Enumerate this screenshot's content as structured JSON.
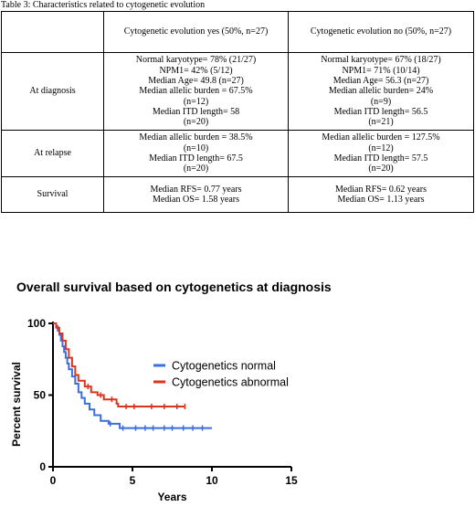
{
  "table": {
    "caption": "Table 3: Characteristics related to cytogenetic evolution",
    "header": [
      "",
      "Cytogenetic evolution yes (50%, n=27)",
      "Cytogenetic evolution no (50%, n=27)"
    ],
    "rows": [
      {
        "label": "At diagnosis",
        "yes": [
          "Normal karyotype= 78% (21/27)",
          "NPM1= 42% (5/12)",
          "Median Age= 49.8 (n=27)",
          "Median allelic burden = 67.5%",
          "(n=12)",
          "Median ITD length= 58",
          "(n=20)"
        ],
        "no": [
          "Normal karyotype= 67% (18/27)",
          "NPM1= 71% (10/14)",
          "Median Age= 56.3 (n=27)",
          "Median allelic burden= 24%",
          "(n=9)",
          "Median ITD length= 56.5",
          "(n=21)"
        ]
      },
      {
        "label": "At relapse",
        "yes": [
          "Median allelic burden = 38.5%",
          "(n=10)",
          "Median ITD length= 67.5",
          "(n=20)"
        ],
        "no": [
          "Median allelic burden = 127.5%",
          "(n=12)",
          "Median ITD length= 57.5",
          "(n=20)"
        ]
      },
      {
        "label": "Survival",
        "yes": [
          "Median RFS= 0.77 years",
          "Median OS= 1.58 years"
        ],
        "no": [
          "Median RFS= 0.62 years",
          "Median OS= 1.13 years"
        ]
      }
    ]
  },
  "chart_data": {
    "type": "line",
    "title": "Overall survival based on cytogenetics at diagnosis",
    "xlabel": "Years",
    "ylabel": "Percent survival",
    "xlim": [
      0,
      15
    ],
    "ylim": [
      0,
      100
    ],
    "xticks": [
      0,
      5,
      10,
      15
    ],
    "yticks": [
      0,
      50,
      100
    ],
    "legend_position": "right",
    "series": [
      {
        "name": "Cytogenetics normal",
        "color": "#3b6fe0",
        "points": [
          [
            0,
            100
          ],
          [
            0.1,
            100
          ],
          [
            0.2,
            98
          ],
          [
            0.3,
            95
          ],
          [
            0.4,
            92
          ],
          [
            0.5,
            88
          ],
          [
            0.6,
            84
          ],
          [
            0.7,
            80
          ],
          [
            0.8,
            76
          ],
          [
            0.9,
            72
          ],
          [
            1.0,
            68
          ],
          [
            1.2,
            63
          ],
          [
            1.4,
            58
          ],
          [
            1.6,
            52
          ],
          [
            1.8,
            48
          ],
          [
            2.0,
            44
          ],
          [
            2.3,
            40
          ],
          [
            2.6,
            36
          ],
          [
            3.0,
            32
          ],
          [
            3.5,
            30
          ],
          [
            4.0,
            30
          ],
          [
            4.2,
            27
          ],
          [
            10,
            27
          ]
        ],
        "censored": [
          3.6,
          4.4,
          5.2,
          5.8,
          6.3,
          7.0,
          7.5,
          8.2,
          8.8,
          9.4
        ]
      },
      {
        "name": "Cytogenetics abnormal",
        "color": "#d9351f",
        "points": [
          [
            0,
            100
          ],
          [
            0.2,
            97
          ],
          [
            0.4,
            93
          ],
          [
            0.6,
            88
          ],
          [
            0.8,
            82
          ],
          [
            1.0,
            76
          ],
          [
            1.2,
            70
          ],
          [
            1.4,
            64
          ],
          [
            1.6,
            60
          ],
          [
            2.0,
            56
          ],
          [
            2.4,
            52
          ],
          [
            2.8,
            50
          ],
          [
            3.2,
            47
          ],
          [
            4.0,
            44
          ],
          [
            4.1,
            42
          ],
          [
            8.3,
            42
          ]
        ],
        "censored": [
          2.2,
          3.0,
          3.7,
          4.6,
          5.1,
          6.2,
          7.0,
          7.8,
          8.3
        ]
      }
    ]
  }
}
